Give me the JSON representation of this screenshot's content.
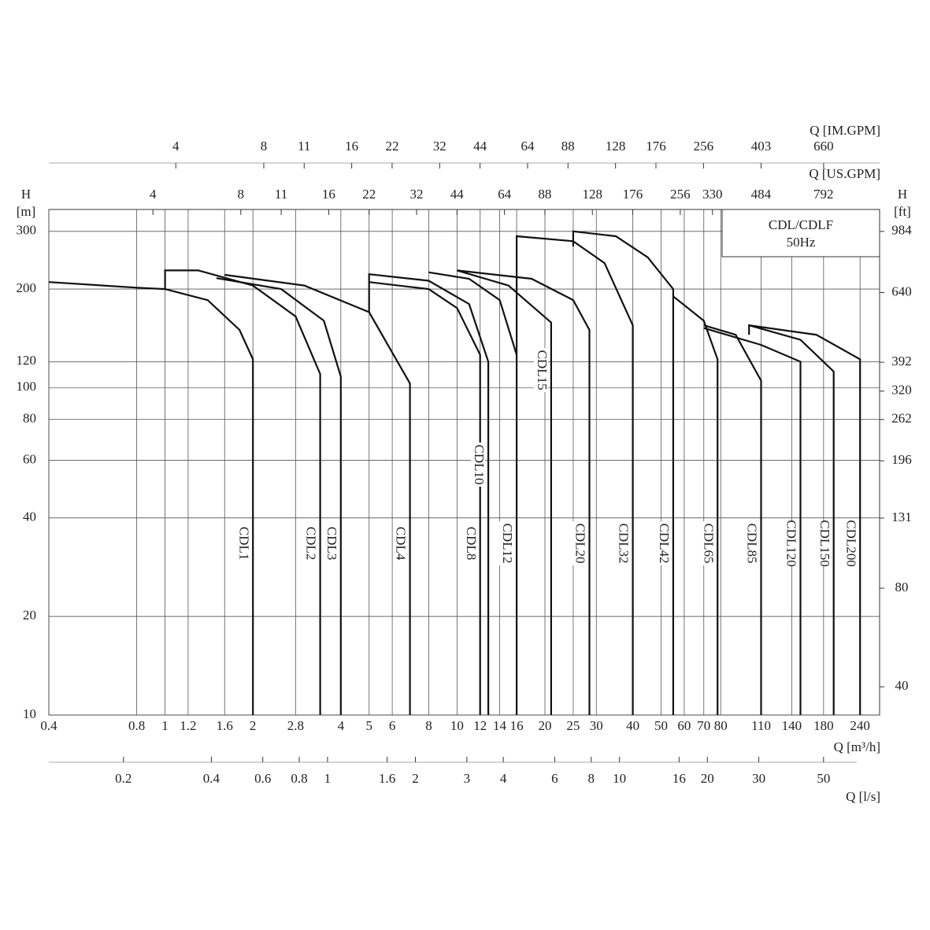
{
  "chart_data": {
    "type": "line",
    "log_x": true,
    "log_y": true,
    "grid": true,
    "y_label": "H",
    "y_unit": "[m]",
    "y2_label": "H",
    "y2_unit": "[ft]",
    "x_label": "Q [m³/h]",
    "xlim": [
      0.4,
      280
    ],
    "xticks": [
      0.4,
      0.8,
      1,
      1.2,
      1.6,
      2,
      2.8,
      4,
      5,
      6,
      8,
      10,
      12,
      14,
      16,
      20,
      25,
      30,
      40,
      50,
      60,
      70,
      80,
      110,
      140,
      180,
      240
    ],
    "ylim": [
      10,
      350
    ],
    "yticks": [
      10,
      20,
      40,
      60,
      80,
      100,
      120,
      200,
      300
    ],
    "y2lim": [
      32.8,
      1148
    ],
    "y2ticks": [
      40,
      80,
      131,
      196,
      262,
      320,
      392,
      640,
      984
    ],
    "secondary_x_axes": [
      {
        "label": "Q [IM.GPM]",
        "lim": [
          1.47,
          1026
        ],
        "ticks": [
          4,
          8,
          11,
          16,
          22,
          32,
          44,
          64,
          88,
          128,
          176,
          256,
          403,
          660
        ]
      },
      {
        "label": "Q [US.GPM]",
        "lim": [
          1.76,
          1233
        ],
        "ticks": [
          4,
          8,
          11,
          16,
          22,
          32,
          44,
          64,
          88,
          128,
          176,
          256,
          330,
          484,
          792
        ]
      },
      {
        "label": "Q [l/s]",
        "lim": [
          0.111,
          77.8
        ],
        "ticks": [
          0.2,
          0.4,
          0.6,
          0.8,
          1,
          1.6,
          2,
          3,
          4,
          6,
          8,
          10,
          16,
          20,
          30,
          50
        ]
      }
    ],
    "annotations": [
      "CDL/CDLF",
      "50Hz"
    ],
    "color": "#111111",
    "series": [
      {
        "name": "CDL1",
        "x": [
          0.4,
          0.8,
          1,
          1.4,
          1.8,
          2,
          2
        ],
        "values": [
          210,
          202,
          200,
          185,
          150,
          122,
          10
        ]
      },
      {
        "name": "CDL2",
        "x": [
          1,
          1,
          1.3,
          2,
          2.8,
          3.4,
          3.4
        ],
        "values": [
          200,
          228,
          228,
          205,
          165,
          110,
          10
        ]
      },
      {
        "name": "CDL3",
        "x": [
          1.5,
          2.5,
          3.5,
          4,
          4
        ],
        "values": [
          216,
          200,
          160,
          108,
          10
        ]
      },
      {
        "name": "CDL4",
        "x": [
          1.6,
          3,
          5,
          6.9,
          6.9
        ],
        "values": [
          221,
          205,
          170,
          103,
          10
        ]
      },
      {
        "name": "CDL8",
        "x": [
          5,
          5,
          8,
          10,
          12,
          12
        ],
        "values": [
          170,
          210,
          200,
          175,
          126,
          10
        ]
      },
      {
        "name": "CDL10",
        "x": [
          5,
          5,
          8,
          11,
          12.8,
          12.8
        ],
        "values": [
          210,
          222,
          212,
          180,
          120,
          10
        ]
      },
      {
        "name": "CDL12",
        "x": [
          8,
          11,
          14,
          16,
          16
        ],
        "values": [
          225,
          215,
          185,
          126,
          10
        ]
      },
      {
        "name": "CDL15",
        "x": [
          10,
          15,
          21,
          21
        ],
        "values": [
          228,
          205,
          158,
          10
        ]
      },
      {
        "name": "CDL20",
        "x": [
          10,
          18,
          25,
          28.4,
          28.4
        ],
        "values": [
          228,
          215,
          185,
          150,
          10
        ]
      },
      {
        "name": "CDL32",
        "x": [
          16,
          16,
          25,
          32,
          40,
          40
        ],
        "values": [
          126,
          290,
          280,
          240,
          155,
          10
        ]
      },
      {
        "name": "CDL42",
        "x": [
          25,
          25,
          35,
          45,
          55,
          55
        ],
        "values": [
          270,
          300,
          290,
          250,
          200,
          10
        ]
      },
      {
        "name": "CDL65",
        "x": [
          55,
          70,
          78,
          78
        ],
        "values": [
          190,
          160,
          122,
          10
        ]
      },
      {
        "name": "CDL85",
        "x": [
          70,
          90,
          110,
          110
        ],
        "values": [
          155,
          145,
          105,
          10
        ]
      },
      {
        "name": "CDL120",
        "x": [
          70,
          110,
          150,
          150
        ],
        "values": [
          152,
          135,
          120,
          10
        ]
      },
      {
        "name": "CDL150",
        "x": [
          100,
          100,
          150,
          195,
          195
        ],
        "values": [
          145,
          155,
          140,
          112,
          10
        ]
      },
      {
        "name": "CDL200",
        "x": [
          100,
          170,
          240,
          240
        ],
        "values": [
          155,
          145,
          122,
          10
        ]
      }
    ]
  }
}
